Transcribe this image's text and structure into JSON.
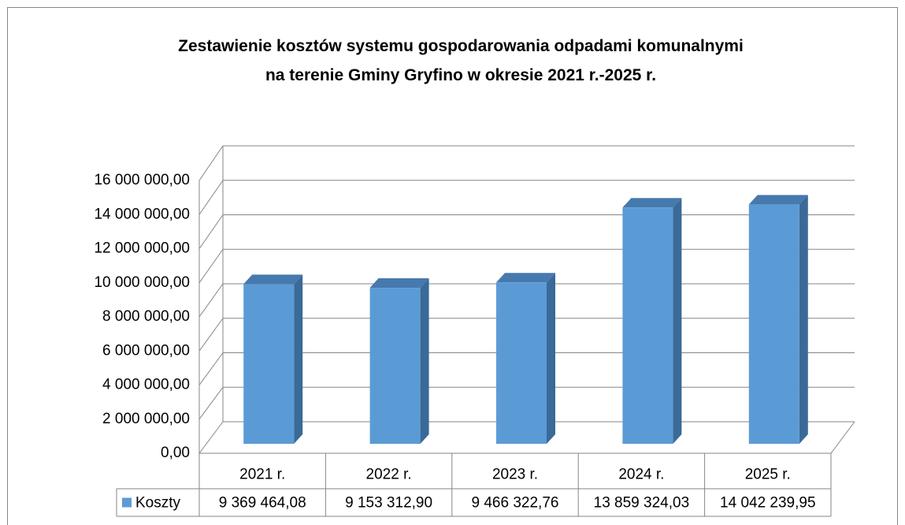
{
  "chart_data": {
    "type": "bar3d",
    "title": "Zestawienie kosztów systemu gospodarowania odpadami komunalnymi\nna terenie Gminy Gryfino w okresie 2021 r.-2025 r.",
    "categories": [
      "2021 r.",
      "2022 r.",
      "2023 r.",
      "2024 r.",
      "2025 r."
    ],
    "series": [
      {
        "name": "Koszty",
        "color": "#5b9bd5",
        "values": [
          9369464.08,
          9153312.9,
          9466322.76,
          13859324.03,
          14042239.95
        ],
        "value_labels": [
          "9 369 464,08",
          "9 153 312,90",
          "9 466 322,76",
          "13 859 324,03",
          "14 042 239,95"
        ]
      }
    ],
    "ylim": [
      0,
      16000000
    ],
    "yticks": [
      {
        "value": 0,
        "label": "0,00"
      },
      {
        "value": 2000000,
        "label": "2 000 000,00"
      },
      {
        "value": 4000000,
        "label": "4 000 000,00"
      },
      {
        "value": 6000000,
        "label": "6 000 000,00"
      },
      {
        "value": 8000000,
        "label": "8 000 000,00"
      },
      {
        "value": 10000000,
        "label": "10 000 000,00"
      },
      {
        "value": 12000000,
        "label": "12 000 000,00"
      },
      {
        "value": 14000000,
        "label": "14 000 000,00"
      },
      {
        "value": 16000000,
        "label": "16 000 000,00"
      }
    ],
    "grid": true,
    "data_table": true
  }
}
